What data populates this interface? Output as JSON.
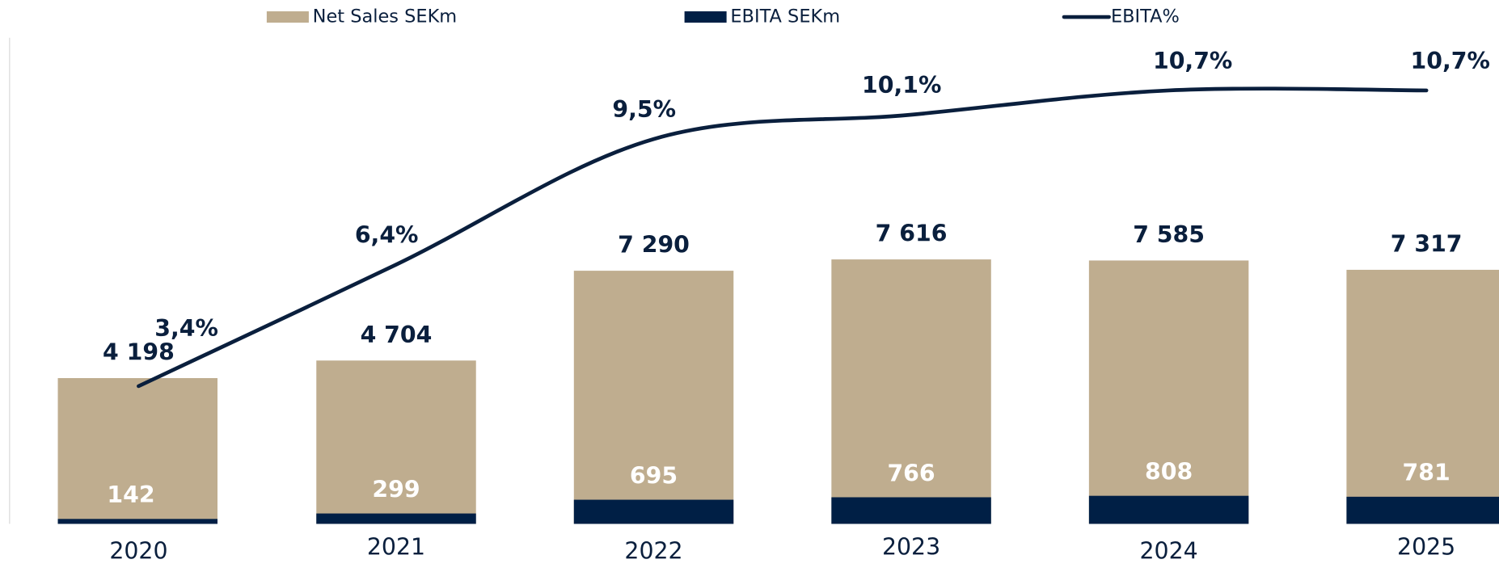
{
  "chart_data": {
    "type": "bar-line",
    "categories": [
      "2020",
      "2021",
      "2022",
      "2023",
      "2024",
      "2025"
    ],
    "series": [
      {
        "name": "Net Sales SEKm",
        "color": "#bfad8f",
        "values": [
          4198,
          4704,
          7290,
          7616,
          7585,
          7317
        ],
        "value_labels": [
          "4 198",
          "4 704",
          "7 290",
          "7 616",
          "7 585",
          "7 317"
        ]
      },
      {
        "name": "EBITA SEKm",
        "color": "#001f45",
        "values": [
          142,
          299,
          695,
          766,
          808,
          781
        ]
      },
      {
        "name": "EBITA%",
        "color": "#0a1f3d",
        "axis": "y2",
        "type": "line",
        "values": [
          3.4,
          6.4,
          9.5,
          10.1,
          10.7,
          10.7
        ],
        "value_labels": [
          "3,4%",
          "6,4%",
          "9,5%",
          "10,1%",
          "10,7%",
          "10,7%"
        ]
      }
    ],
    "ylim": [
      0,
      14000
    ],
    "y2lim": [
      0,
      12
    ]
  }
}
